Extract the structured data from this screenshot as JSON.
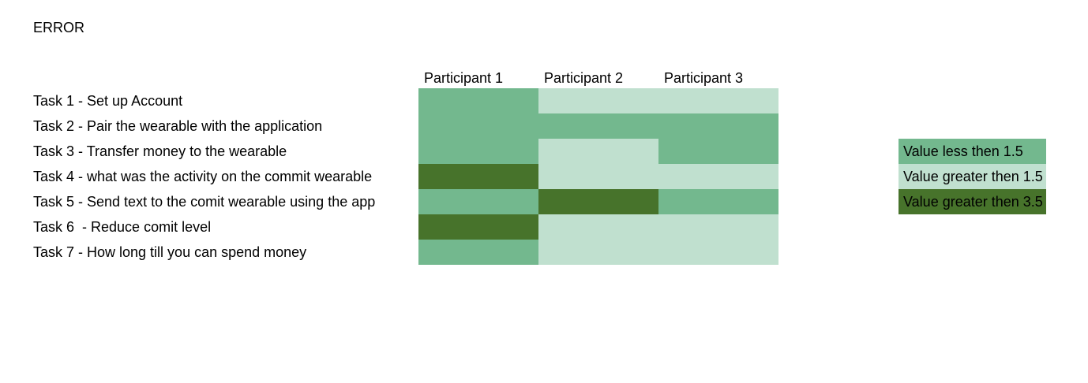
{
  "title": "ERROR",
  "chart_data": {
    "type": "heatmap",
    "columns": [
      "Participant 1",
      "Participant 2",
      "Participant 3"
    ],
    "rows": [
      "Task 1 - Set up Account",
      "Task 2 - Pair the wearable with the application",
      "Task 3 - Transfer money to the wearable",
      "Task 4 - what was the activity on the commit wearable",
      "Task 5 - Send text to the comit wearable using the app",
      "Task 6  - Reduce comit level",
      "Task 7 - How long till you can spend money"
    ],
    "categories": [
      [
        "lt_1_5",
        "gt_1_5",
        "gt_1_5"
      ],
      [
        "lt_1_5",
        "lt_1_5",
        "lt_1_5"
      ],
      [
        "lt_1_5",
        "gt_1_5",
        "lt_1_5"
      ],
      [
        "gt_3_5",
        "gt_1_5",
        "gt_1_5"
      ],
      [
        "lt_1_5",
        "gt_3_5",
        "lt_1_5"
      ],
      [
        "gt_3_5",
        "gt_1_5",
        "gt_1_5"
      ],
      [
        "lt_1_5",
        "gt_1_5",
        "gt_1_5"
      ]
    ],
    "legend": [
      {
        "key": "lt_1_5",
        "label": "Value less then 1.5",
        "color": "#73b88e"
      },
      {
        "key": "gt_1_5",
        "label": "Value greater then 1.5",
        "color": "#c0e0cf"
      },
      {
        "key": "gt_3_5",
        "label": "Value greater then 3.5",
        "color": "#47732b"
      }
    ]
  }
}
